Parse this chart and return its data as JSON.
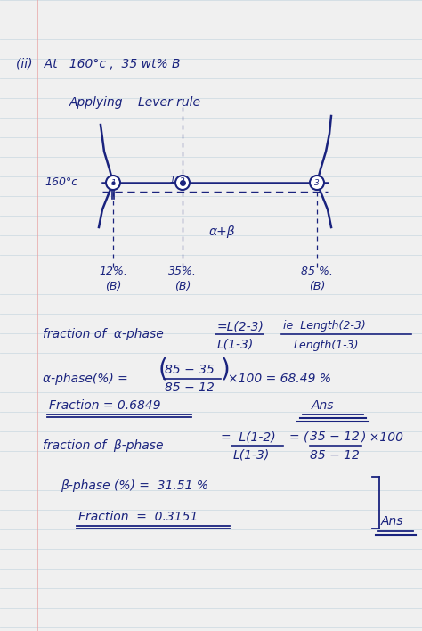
{
  "bg_color": "#f0f0f0",
  "paper_color": "#f5f5f5",
  "line_color": "#1a237e",
  "ruled_line_color": "#c8d8e0",
  "margin_color": "#e8a0a0",
  "title": "(ii)   At   160°c ,  35 wt% B",
  "applying": "Applying    Lever rule",
  "temp_label": "160°c",
  "alpha_beta": "α+β",
  "pct_12": "12%.",
  "pct_B1": "(B)",
  "pct_35": "35%.",
  "pct_B2": "(B)",
  "pct_85": "85 %.",
  "pct_B3": "(B)",
  "frac_alpha_lhs": "fraction of  α-phase",
  "frac_alpha_num": "=L(2-3)",
  "frac_alpha_den": "L(1-3)",
  "frac_alpha_ie_num": "ie  Length(2-3)",
  "frac_alpha_ie_den": "Length(1-3)",
  "alpha_calc_lhs": "α-phase(%) =",
  "alpha_num": "85 − 35",
  "alpha_den": "85 − 12",
  "alpha_rhs": "×100 = 68.49 %",
  "fraction_a": "Fraction = 0.6849",
  "ans1": "Ans",
  "frac_beta_lhs": "fraction of  β-phase",
  "frac_beta_mid_num": "L(1-2)",
  "frac_beta_mid_den": "L(1-3)",
  "frac_beta_rhs_num": "35 − 12",
  "frac_beta_rhs_den": "85 − 12",
  "frac_beta_x100": "×100",
  "beta_calc": "β-phase (%) =  31.51 %",
  "fraction_b": "Fraction  =  0.3151",
  "ans2": "Ans"
}
